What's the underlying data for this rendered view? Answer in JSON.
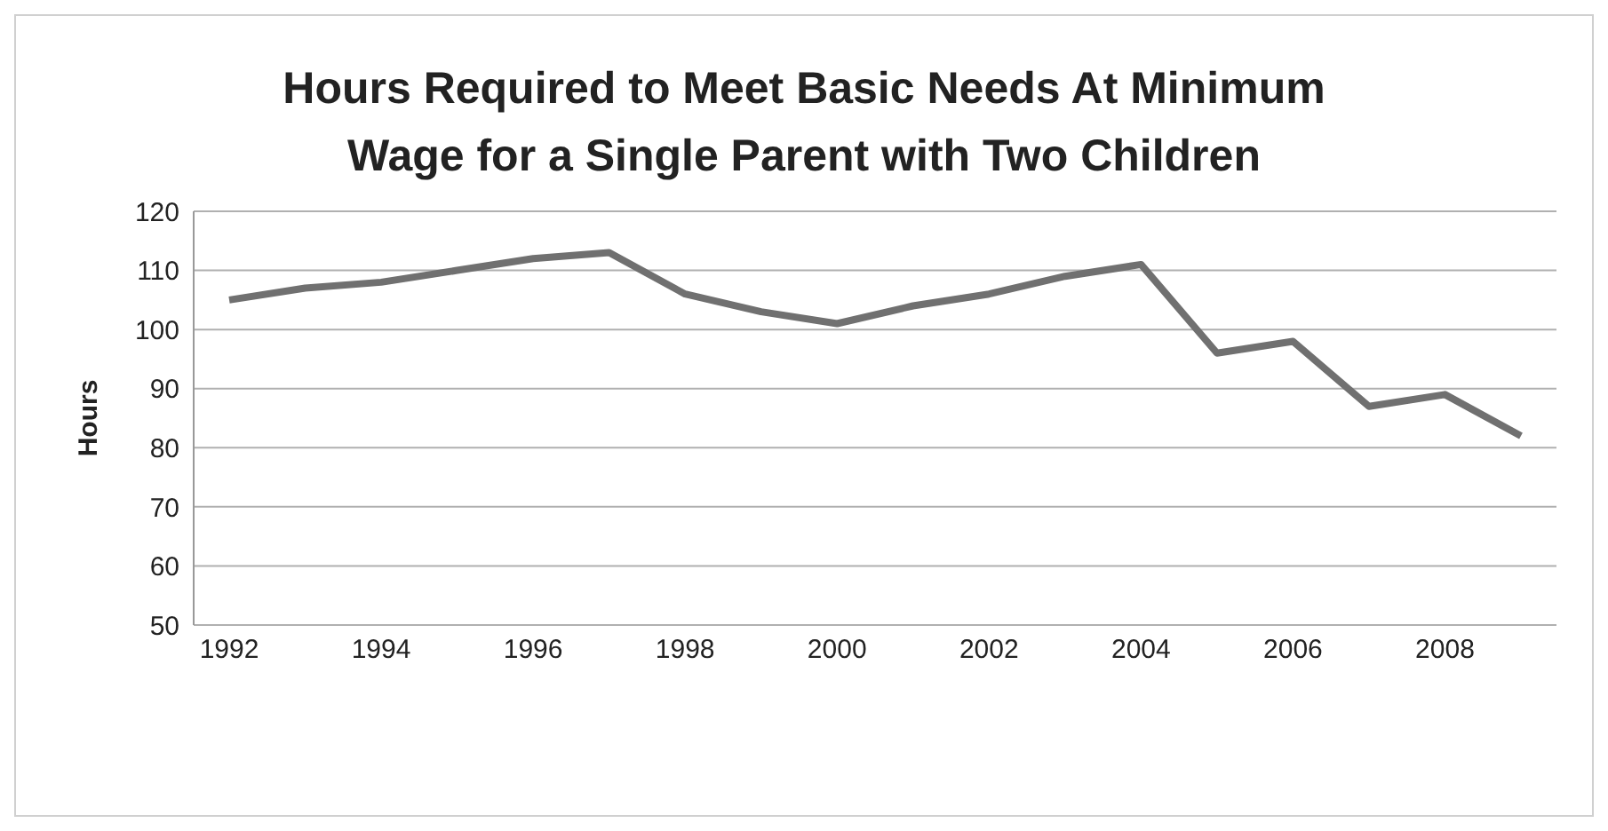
{
  "chart_data": {
    "type": "line",
    "title": "Hours Required to Meet Basic Needs At Minimum Wage for a Single Parent with Two Children",
    "ylabel": "Hours",
    "categories": [
      "1992",
      null,
      "1994",
      null,
      "1996",
      null,
      "1998",
      null,
      "2000",
      null,
      "2002",
      null,
      "2004",
      null,
      "2006",
      null,
      "2008",
      null
    ],
    "series": [
      {
        "color": "#707070",
        "values": [
          105,
          107,
          108,
          110,
          112,
          113,
          106,
          103,
          101,
          104,
          106,
          109,
          111,
          96,
          98,
          87,
          89,
          82
        ]
      }
    ],
    "ylim": [
      50,
      120
    ],
    "yticks": [
      50,
      60,
      70,
      80,
      90,
      100,
      110,
      120
    ],
    "grid": "y",
    "legend": false,
    "marker": "none",
    "line_style": "solid"
  }
}
